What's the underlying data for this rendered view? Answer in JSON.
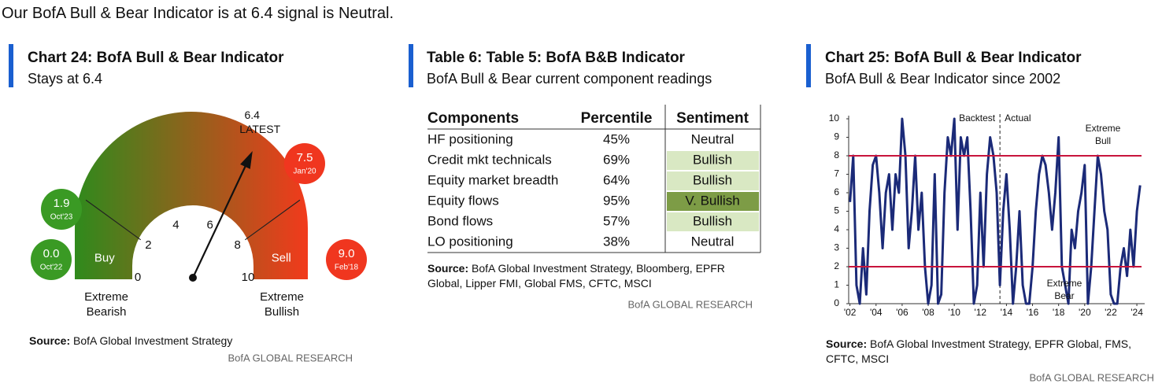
{
  "headline": "Our BofA Bull & Bear Indicator is at 6.4 signal is Neutral.",
  "chart_data": [
    {
      "type": "gauge",
      "title": "Chart 24: BofA Bull & Bear Indicator",
      "subtitle": "Stays at 6.4",
      "value": 6.4,
      "value_caption": "LATEST",
      "ylim": [
        0,
        10
      ],
      "yticks": [
        0,
        2,
        4,
        6,
        8,
        10
      ],
      "colors": [
        "#2f8a1c",
        "#f23a1c"
      ],
      "zones": [
        {
          "label": "Buy",
          "from": 0,
          "to": 2
        },
        {
          "label": "Sell",
          "from": 8,
          "to": 10
        }
      ],
      "end_labels": [
        "Extreme Bearish",
        "Extreme Bullish"
      ],
      "bubbles": [
        {
          "value": 1.9,
          "date": "Oct'23",
          "color": "#3a9a24"
        },
        {
          "value": 0.0,
          "value_label": "0.0",
          "date": "Oct'22",
          "color": "#3a9a24"
        },
        {
          "value": 7.5,
          "date": "Jan'20",
          "color": "#f0361f"
        },
        {
          "value": 9.0,
          "value_label": "9.0",
          "date": "Feb'18",
          "color": "#f0361f"
        }
      ],
      "source_label": "Source:",
      "source": "BofA Global Investment Strategy",
      "brand": "BofA GLOBAL RESEARCH"
    },
    {
      "type": "line",
      "title": "Chart 25: BofA Bull & Bear Indicator",
      "subtitle": "BofA Bull & Bear Indicator since 2002",
      "x": [
        2002,
        2002.25,
        2002.5,
        2002.75,
        2003,
        2003.25,
        2003.5,
        2003.75,
        2004,
        2004.25,
        2004.5,
        2004.75,
        2005,
        2005.25,
        2005.5,
        2005.75,
        2006,
        2006.25,
        2006.5,
        2006.75,
        2007,
        2007.25,
        2007.5,
        2007.75,
        2008,
        2008.25,
        2008.5,
        2008.75,
        2009,
        2009.25,
        2009.5,
        2009.75,
        2010,
        2010.25,
        2010.5,
        2010.75,
        2011,
        2011.25,
        2011.5,
        2011.75,
        2012,
        2012.25,
        2012.5,
        2012.75,
        2013,
        2013.25,
        2013.5,
        2013.75,
        2014,
        2014.25,
        2014.5,
        2014.75,
        2015,
        2015.25,
        2015.5,
        2015.75,
        2016,
        2016.25,
        2016.5,
        2016.75,
        2017,
        2017.25,
        2017.5,
        2017.75,
        2018,
        2018.25,
        2018.5,
        2018.75,
        2019,
        2019.25,
        2019.5,
        2019.75,
        2020,
        2020.25,
        2020.5,
        2020.75,
        2021,
        2021.25,
        2021.5,
        2021.75,
        2022,
        2022.25,
        2022.5,
        2022.75,
        2023,
        2023.25,
        2023.5,
        2023.75,
        2024,
        2024.25
      ],
      "series": [
        {
          "name": "BofA Bull & Bear Indicator",
          "color": "#1b2a78",
          "values": [
            5.5,
            8,
            1,
            0,
            3,
            0.5,
            5,
            7.5,
            8,
            6,
            3,
            6,
            7,
            4,
            7,
            6,
            10,
            8,
            3,
            5,
            8,
            4,
            6,
            2,
            0,
            1,
            7,
            0,
            0.5,
            6,
            9,
            8,
            10,
            4,
            9,
            8,
            9,
            5,
            0,
            1,
            6,
            2,
            7,
            9,
            8,
            6,
            1,
            5,
            7,
            4,
            0,
            2,
            5,
            1,
            0,
            0,
            2,
            5,
            7,
            8,
            7.5,
            6,
            4,
            6,
            9,
            2,
            1,
            0,
            4,
            3,
            5,
            6,
            7.5,
            0,
            2,
            5,
            8,
            7,
            5,
            4,
            0.5,
            0,
            0,
            2,
            3,
            1.5,
            4,
            2,
            5,
            6.4
          ]
        }
      ],
      "xlim": [
        2001.9,
        2024.6
      ],
      "xticks": [
        {
          "value": 2002,
          "label": "'02"
        },
        {
          "value": 2004,
          "label": "'04"
        },
        {
          "value": 2006,
          "label": "'06"
        },
        {
          "value": 2008,
          "label": "'08"
        },
        {
          "value": 2010,
          "label": "'10"
        },
        {
          "value": 2012,
          "label": "'12"
        },
        {
          "value": 2014,
          "label": "'14"
        },
        {
          "value": 2016,
          "label": "'16"
        },
        {
          "value": 2018,
          "label": "'18"
        },
        {
          "value": 2020,
          "label": "'20"
        },
        {
          "value": 2022,
          "label": "'22"
        },
        {
          "value": 2024,
          "label": "'24"
        }
      ],
      "ylim": [
        0,
        10
      ],
      "yticks": [
        0,
        1,
        2,
        3,
        4,
        5,
        6,
        7,
        8,
        9,
        10
      ],
      "reference_lines": [
        8,
        2
      ],
      "reference_color": "#c8143c",
      "divider": 2013.5,
      "divider_labels": [
        "Backtest",
        "Actual"
      ],
      "zone_labels": [
        "Extreme Bull",
        "Extreme Bear"
      ],
      "source_label": "Source:",
      "source": "BofA Global Investment Strategy, EPFR Global, FMS, CFTC, MSCI",
      "brand": "BofA GLOBAL RESEARCH"
    }
  ],
  "table": {
    "title": "Table 6: Table 5: BofA B&B Indicator",
    "subtitle": "BofA Bull & Bear current component readings",
    "columns": [
      "Components",
      "Percentile",
      "Sentiment"
    ],
    "rows": [
      [
        "HF positioning",
        "45%",
        "Neutral"
      ],
      [
        "Credit mkt technicals",
        "69%",
        "Bullish"
      ],
      [
        "Equity market breadth",
        "64%",
        "Bullish"
      ],
      [
        "Equity flows",
        "95%",
        "V. Bullish"
      ],
      [
        "Bond flows",
        "57%",
        "Bullish"
      ],
      [
        "LO positioning",
        "38%",
        "Neutral"
      ]
    ],
    "sentiment_fills": {
      "Bullish": "#d9e8c3",
      "V. Bullish": "#7d9c46"
    },
    "source_label": "Source:",
    "source": "BofA Global Investment Strategy, Bloomberg, EPFR Global, Lipper FMI, Global FMS, CFTC, MSCI",
    "brand": "BofA GLOBAL RESEARCH"
  }
}
